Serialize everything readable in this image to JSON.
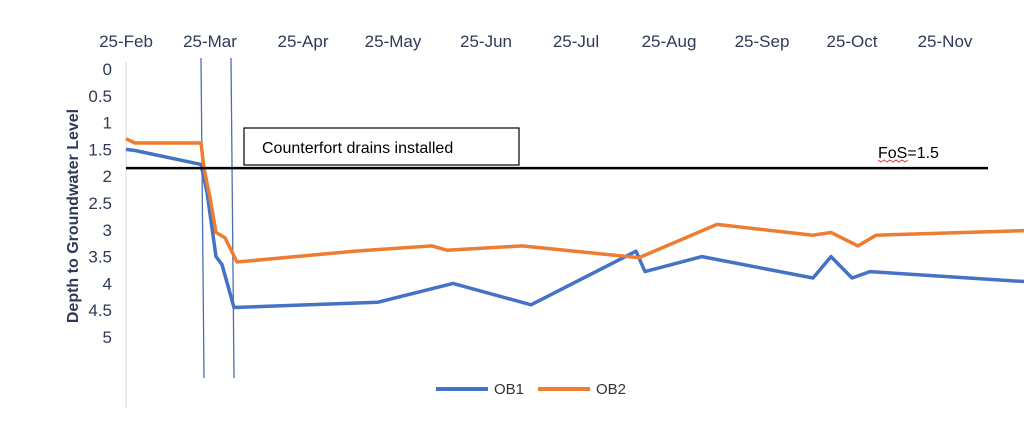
{
  "chart_data": {
    "type": "line",
    "x_axis_position": "top",
    "x_ticks": [
      "25-Feb",
      "25-Mar",
      "25-Apr",
      "25-May",
      "25-Jun",
      "25-Jul",
      "25-Aug",
      "25-Sep",
      "25-Oct",
      "25-Nov"
    ],
    "y_ticks": [
      "0",
      "0.5",
      "1",
      "1.5",
      "2",
      "2.5",
      "3",
      "3.5",
      "4",
      "4.5",
      "5"
    ],
    "ylabel": "Depth to Groundwater  Level",
    "ylim": [
      0,
      5
    ],
    "y_inverted": true,
    "grid": false,
    "legend_position": "bottom",
    "series": [
      {
        "name": "OB1",
        "color": "#4472c4",
        "points": [
          [
            "2017-02-25",
            1.5
          ],
          [
            "2017-02-28",
            1.52
          ],
          [
            "2017-03-22",
            1.78
          ],
          [
            "2017-03-24",
            2.3
          ],
          [
            "2017-03-27",
            3.5
          ],
          [
            "2017-03-29",
            3.65
          ],
          [
            "2017-04-02",
            4.45
          ],
          [
            "2017-05-20",
            4.35
          ],
          [
            "2017-06-14",
            4.0
          ],
          [
            "2017-07-10",
            4.4
          ],
          [
            "2017-08-14",
            3.4
          ],
          [
            "2017-08-17",
            3.78
          ],
          [
            "2017-09-05",
            3.5
          ],
          [
            "2017-10-12",
            3.9
          ],
          [
            "2017-10-18",
            3.5
          ],
          [
            "2017-10-25",
            3.9
          ],
          [
            "2017-10-31",
            3.78
          ],
          [
            "2017-12-31",
            4.0
          ]
        ]
      },
      {
        "name": "OB2",
        "color": "#ed7d31",
        "points": [
          [
            "2017-02-25",
            1.3
          ],
          [
            "2017-02-28",
            1.38
          ],
          [
            "2017-03-22",
            1.38
          ],
          [
            "2017-03-23",
            1.85
          ],
          [
            "2017-03-25",
            2.4
          ],
          [
            "2017-03-27",
            3.05
          ],
          [
            "2017-03-30",
            3.15
          ],
          [
            "2017-04-03",
            3.6
          ],
          [
            "2017-05-12",
            3.4
          ],
          [
            "2017-06-07",
            3.3
          ],
          [
            "2017-06-12",
            3.38
          ],
          [
            "2017-07-07",
            3.3
          ],
          [
            "2017-08-15",
            3.52
          ],
          [
            "2017-09-10",
            2.9
          ],
          [
            "2017-10-12",
            3.1
          ],
          [
            "2017-10-18",
            3.05
          ],
          [
            "2017-10-27",
            3.3
          ],
          [
            "2017-11-02",
            3.1
          ],
          [
            "2017-12-31",
            3.0
          ]
        ]
      }
    ],
    "annotations": {
      "box_label": "Counterfort drains installed",
      "fos_label": "FoS=1.5",
      "fos_depth": 1.85,
      "vertical_markers": [
        "2017-03-22",
        "2017-04-01"
      ]
    }
  }
}
